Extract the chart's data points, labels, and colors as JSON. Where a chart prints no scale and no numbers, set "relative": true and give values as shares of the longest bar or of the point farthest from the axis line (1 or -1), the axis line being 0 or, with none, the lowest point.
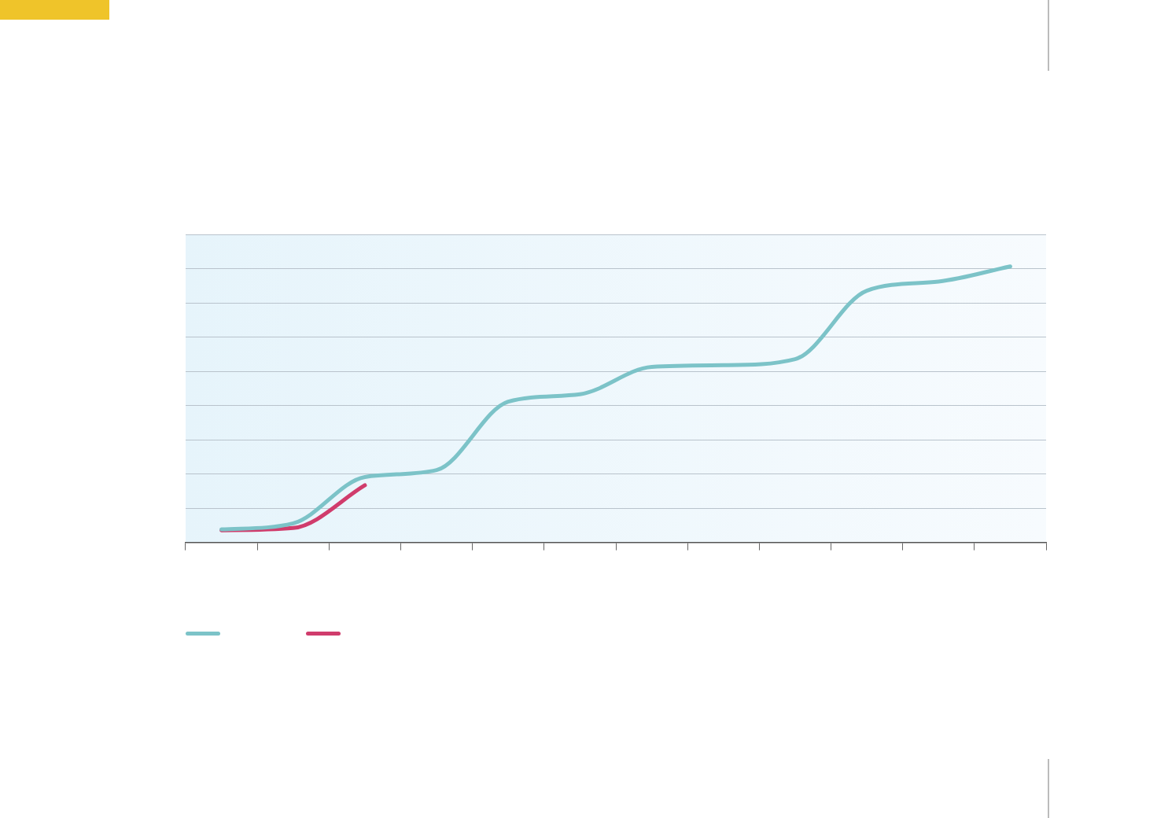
{
  "chart_data": {
    "type": "line",
    "relative": true,
    "categories": [
      null,
      null,
      null,
      null,
      null,
      null,
      null,
      null,
      null,
      null,
      null,
      null
    ],
    "series": [
      {
        "color": "#7cc3c8",
        "values": [
          0.047,
          0.069,
          0.237,
          0.262,
          0.51,
          0.537,
          0.636,
          0.642,
          0.664,
          0.912,
          0.945,
          1
        ]
      },
      {
        "color": "#d03c6c",
        "values": [
          0.044,
          0.052,
          0.207,
          null,
          null,
          null,
          null,
          null,
          null,
          null,
          null,
          null
        ]
      }
    ],
    "grid": "y",
    "marker": "none",
    "line_style": "solid"
  }
}
